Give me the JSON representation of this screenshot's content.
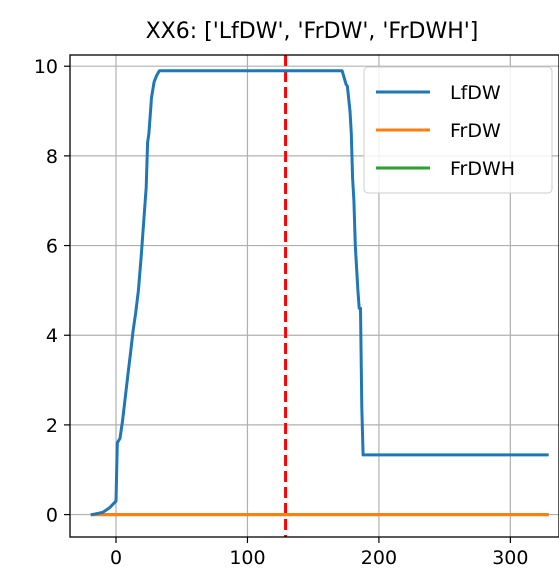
{
  "chart_data": {
    "type": "line",
    "title": "XX6: ['LfDW', 'FrDW', 'FrDWH']",
    "xlabel": "",
    "ylabel": "",
    "xlim": [
      -35,
      337
    ],
    "ylim": [
      -0.5,
      10.25
    ],
    "xticks": [
      0,
      100,
      200,
      300
    ],
    "yticks": [
      0,
      2,
      4,
      6,
      8,
      10
    ],
    "grid": true,
    "legend_position": "upper-right",
    "vline": {
      "x": 129,
      "color": "#ff0000",
      "style": "dashed"
    },
    "series": [
      {
        "name": "LfDW",
        "color": "#1f77b4",
        "x": [
          -18,
          -10,
          -5,
          0,
          1,
          3,
          5,
          7,
          9,
          11,
          13,
          15,
          17,
          19,
          21,
          23,
          24,
          25,
          27,
          29,
          31,
          33,
          35,
          38,
          60,
          100,
          140,
          172,
          175,
          176,
          178,
          179,
          180,
          181,
          182,
          183,
          184,
          185,
          186,
          187,
          188,
          200,
          250,
          300,
          328
        ],
        "y": [
          0.0,
          0.05,
          0.15,
          0.3,
          1.6,
          1.7,
          2.1,
          2.6,
          3.1,
          3.6,
          4.1,
          4.5,
          5.0,
          5.7,
          6.5,
          7.3,
          8.3,
          8.5,
          9.3,
          9.65,
          9.8,
          9.9,
          9.9,
          9.9,
          9.9,
          9.9,
          9.9,
          9.9,
          9.6,
          9.55,
          9.0,
          8.5,
          7.5,
          7.0,
          6.0,
          5.5,
          5.0,
          4.6,
          4.6,
          2.4,
          1.33,
          1.33,
          1.33,
          1.33,
          1.33
        ]
      },
      {
        "name": "FrDW",
        "color": "#ff7f0e",
        "x": [
          -18,
          328
        ],
        "y": [
          0.0,
          0.0
        ]
      },
      {
        "name": "FrDWH",
        "color": "#2ca02c",
        "x": [
          -18,
          328
        ],
        "y": [
          0.0,
          0.0
        ]
      }
    ]
  }
}
